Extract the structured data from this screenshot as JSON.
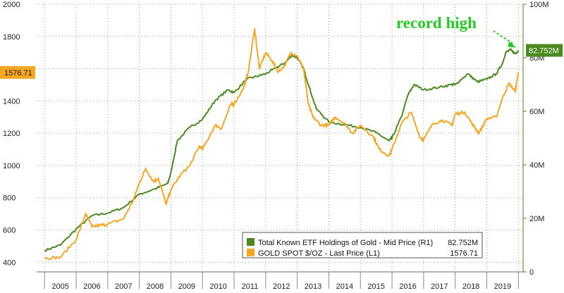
{
  "chart_data": {
    "type": "line",
    "title": "",
    "xlabel": "",
    "x_ticks": [
      "2005",
      "2006",
      "2007",
      "2008",
      "2009",
      "2010",
      "2011",
      "2012",
      "2013",
      "2014",
      "2015",
      "2016",
      "2017",
      "2018",
      "2019"
    ],
    "left_axis": {
      "ylim": [
        340,
        2000
      ],
      "ticks": [
        400,
        600,
        800,
        1000,
        1200,
        1400,
        1600,
        1800,
        2000
      ]
    },
    "right_axis": {
      "ylim": [
        0,
        100
      ],
      "ticks": [
        0,
        20,
        40,
        60,
        80,
        100
      ],
      "tick_labels": [
        "0",
        "20M",
        "40M",
        "60M",
        "80M",
        "100M"
      ]
    },
    "grid": true,
    "series": [
      {
        "name": "GOLD SPOT $/OZ - Last Price (L1)",
        "axis": "left",
        "color": "#f5a623",
        "last_value": "1576.71",
        "x": [
          2005.0,
          2005.5,
          2006.0,
          2006.3,
          2006.5,
          2006.8,
          2007.0,
          2007.5,
          2007.8,
          2008.0,
          2008.2,
          2008.45,
          2008.6,
          2008.85,
          2009.0,
          2009.3,
          2009.6,
          2009.9,
          2010.0,
          2010.4,
          2010.6,
          2010.9,
          2011.0,
          2011.3,
          2011.45,
          2011.65,
          2011.8,
          2012.0,
          2012.2,
          2012.4,
          2012.6,
          2012.8,
          2013.0,
          2013.2,
          2013.35,
          2013.5,
          2013.75,
          2014.0,
          2014.2,
          2014.5,
          2014.75,
          2015.0,
          2015.4,
          2015.6,
          2015.9,
          2016.0,
          2016.3,
          2016.6,
          2016.9,
          2017.0,
          2017.3,
          2017.6,
          2017.9,
          2018.0,
          2018.3,
          2018.6,
          2018.75,
          2019.0,
          2019.3,
          2019.5,
          2019.7,
          2019.9,
          2020.0
        ],
        "values": [
          425,
          430,
          540,
          700,
          620,
          630,
          635,
          670,
          780,
          890,
          980,
          900,
          920,
          760,
          850,
          940,
          1000,
          1120,
          1100,
          1250,
          1230,
          1380,
          1380,
          1480,
          1580,
          1850,
          1600,
          1700,
          1650,
          1580,
          1620,
          1700,
          1680,
          1600,
          1380,
          1300,
          1250,
          1250,
          1300,
          1260,
          1200,
          1250,
          1180,
          1100,
          1060,
          1100,
          1260,
          1330,
          1170,
          1160,
          1260,
          1280,
          1250,
          1320,
          1330,
          1240,
          1200,
          1290,
          1300,
          1420,
          1510,
          1460,
          1576.71
        ]
      },
      {
        "name": "Total Known ETF Holdings of Gold - Mid Price (R1)",
        "axis": "right",
        "color": "#4a8a1f",
        "last_value": "82.752M",
        "x": [
          2005.0,
          2005.5,
          2006.0,
          2006.5,
          2007.0,
          2007.5,
          2008.0,
          2008.5,
          2008.9,
          2009.0,
          2009.2,
          2009.6,
          2010.0,
          2010.4,
          2010.8,
          2011.0,
          2011.4,
          2011.7,
          2012.0,
          2012.3,
          2012.6,
          2012.85,
          2013.0,
          2013.2,
          2013.35,
          2013.6,
          2014.0,
          2014.5,
          2015.0,
          2015.5,
          2015.9,
          2016.0,
          2016.3,
          2016.5,
          2016.7,
          2017.0,
          2017.5,
          2017.9,
          2018.0,
          2018.4,
          2018.7,
          2019.0,
          2019.3,
          2019.5,
          2019.6,
          2019.75,
          2019.9,
          2020.0
        ],
        "values": [
          8,
          10,
          16,
          21,
          22,
          24,
          29,
          31,
          33,
          37,
          49,
          54,
          57,
          64,
          68,
          67,
          72,
          73,
          74,
          76,
          78,
          81,
          80,
          76,
          70,
          61,
          56,
          55,
          54,
          52,
          49,
          50,
          58,
          66,
          70,
          68,
          69,
          70,
          70,
          74,
          71,
          72,
          74,
          78,
          82,
          83,
          81.5,
          82.752
        ]
      }
    ],
    "legend": {
      "position": "bottom-right",
      "entries": [
        {
          "name": "Total Known ETF Holdings of Gold - Mid Price (R1)",
          "value": "82.752M",
          "color": "#4a8a1f"
        },
        {
          "name": "GOLD SPOT $/OZ - Last Price (L1)",
          "value": "1576.71",
          "color": "#f5a623"
        }
      ]
    },
    "annotations": [
      {
        "text": "record high",
        "color": "#22cc22"
      }
    ]
  }
}
